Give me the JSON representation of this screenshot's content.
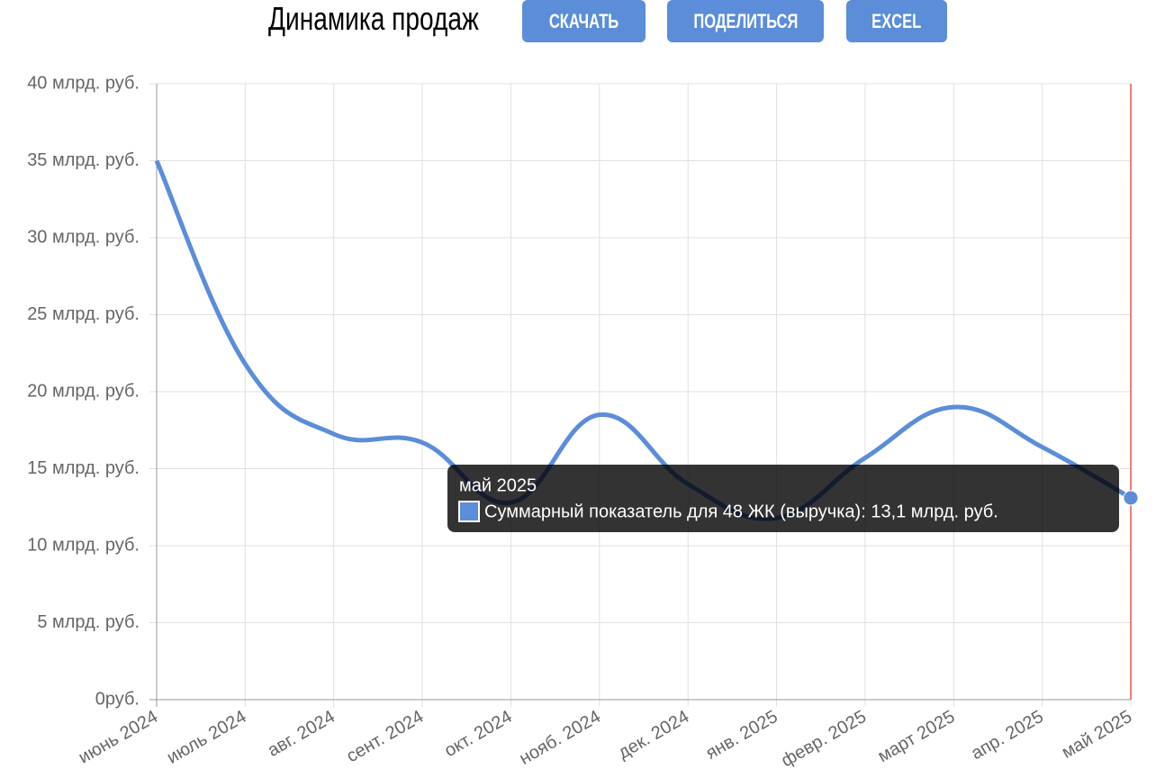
{
  "header": {
    "title": "Динамика продаж",
    "buttons": [
      "СКАЧАТЬ",
      "ПОДЕЛИТЬСЯ",
      "EXCEL"
    ]
  },
  "chart_data": {
    "type": "line",
    "categories": [
      "июнь 2024",
      "июль 2024",
      "авг. 2024",
      "сент. 2024",
      "окт. 2024",
      "нояб. 2024",
      "дек. 2024",
      "янв. 2025",
      "февр. 2025",
      "март 2025",
      "апр. 2025",
      "май 2025"
    ],
    "series": [
      {
        "name": "Суммарный показатель для 48 ЖК (выручка)",
        "color": "#5b8dd9",
        "values": [
          35.0,
          21.8,
          17.25,
          16.7,
          12.8,
          18.5,
          14.0,
          11.8,
          15.7,
          19.0,
          16.4,
          13.1
        ]
      }
    ],
    "ylim": [
      0,
      40
    ],
    "yticks": [
      {
        "value": 0,
        "label": "0руб."
      },
      {
        "value": 5,
        "label": "5 млрд. руб."
      },
      {
        "value": 10,
        "label": "10 млрд. руб."
      },
      {
        "value": 15,
        "label": "15 млрд. руб."
      },
      {
        "value": 20,
        "label": "20 млрд. руб."
      },
      {
        "value": 25,
        "label": "25 млрд. руб."
      },
      {
        "value": 30,
        "label": "30 млрд. руб."
      },
      {
        "value": 35,
        "label": "35 млрд. руб."
      },
      {
        "value": 40,
        "label": "40 млрд. руб."
      }
    ],
    "grid": true,
    "tooltip": {
      "text": "Суммарный показатель для 48 ЖК (выручка): 13,1 млрд. руб."
    }
  }
}
